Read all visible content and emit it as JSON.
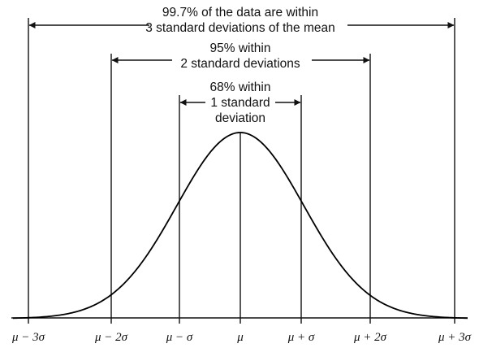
{
  "annotations": {
    "three_sigma": [
      "99.7% of the data are within",
      "3 standard deviations of the mean"
    ],
    "two_sigma": [
      "95% within",
      "2 standard deviations"
    ],
    "one_sigma": [
      "68% within",
      "1 standard",
      "deviation"
    ]
  },
  "axis_labels": [
    "μ − 3σ",
    "μ − 2σ",
    "μ − σ",
    "μ",
    "μ + σ",
    "μ + 2σ",
    "μ + 3σ"
  ],
  "colors": {
    "line": "#111111",
    "background": "#ffffff"
  }
}
